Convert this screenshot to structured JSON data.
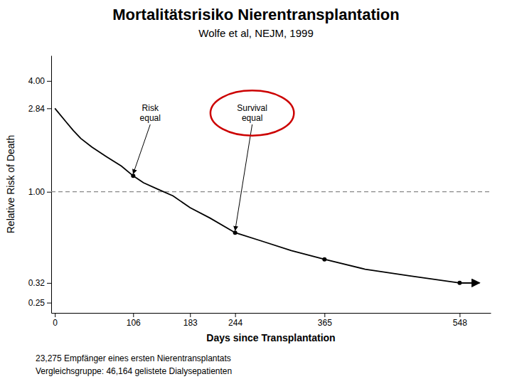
{
  "chart_data": {
    "type": "line",
    "title": "Mortalitätsrisiko Nierentransplantation",
    "subtitle": "Wolfe et al, NEJM, 1999",
    "xlabel": "Days since Transplantation",
    "ylabel": "Relative Risk of Death",
    "footnotes": [
      "23,275 Empfänger eines ersten Nierentransplantats",
      "Vergleichsgruppe: 46,164 gelistete Dialysepatienten"
    ],
    "log": "y",
    "grid": false,
    "xlim": [
      -5,
      590
    ],
    "ylim": [
      0.22,
      5.5
    ],
    "xticks": [
      0,
      106,
      183,
      244,
      365,
      548
    ],
    "yticks": [
      0.25,
      0.32,
      {
        "value": 1.0,
        "label": "1.00"
      },
      2.84,
      {
        "value": 4.0,
        "label": "4.00"
      }
    ],
    "series": [
      {
        "type": "line",
        "color": "#000000",
        "line_style": "solid",
        "x": [
          0,
          15,
          25,
          35,
          50,
          70,
          90,
          106,
          120,
          140,
          160,
          183,
          210,
          244,
          280,
          320,
          365,
          420,
          480,
          548,
          570
        ],
        "values": [
          2.84,
          2.4,
          2.15,
          1.95,
          1.75,
          1.55,
          1.38,
          1.22,
          1.12,
          1.03,
          0.95,
          0.82,
          0.72,
          0.6,
          0.54,
          0.48,
          0.43,
          0.38,
          0.35,
          0.32,
          0.32
        ]
      },
      {
        "type": "scatter",
        "color": "#000000",
        "marker": "circle",
        "x": [
          106,
          244,
          365,
          548
        ],
        "values": [
          1.22,
          0.6,
          0.43,
          0.32
        ]
      }
    ],
    "reference_lines": [
      {
        "y": 1.0,
        "color": "#888888",
        "line_style": "dashed"
      }
    ],
    "arrow": {
      "x": [
        548,
        575
      ],
      "y": 0.32,
      "color": "#000000"
    },
    "annotations": [
      {
        "text": "Risk\nequal",
        "x": 106,
        "y": 1.22
      },
      {
        "text": "Survival\nequal",
        "x": 244,
        "y": 0.6,
        "color": "#cc0000"
      }
    ]
  }
}
